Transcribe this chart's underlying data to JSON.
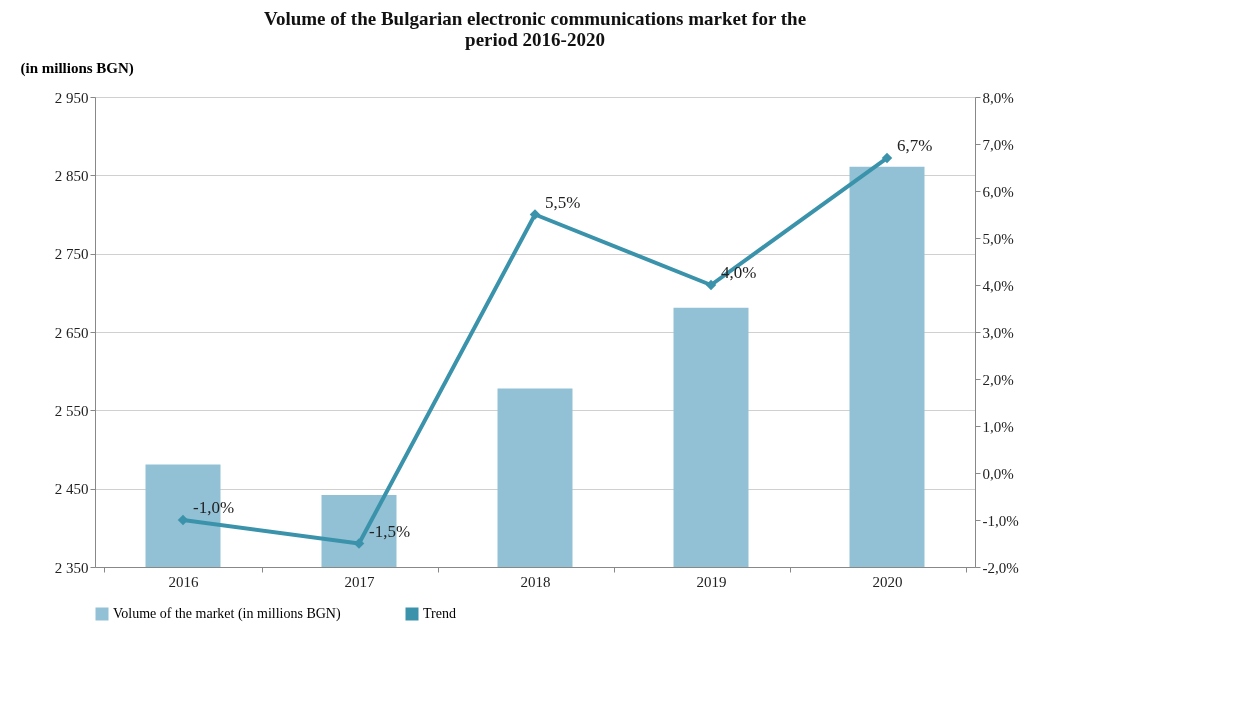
{
  "chart_data": {
    "type": "bar",
    "title": "Volume of the Bulgarian electronic communications market for the period 2016-2020",
    "ylabel": "(in millions BGN)",
    "categories": [
      "2016",
      "2017",
      "2018",
      "2019",
      "2020"
    ],
    "series": [
      {
        "name": "Volume of the market (in millions BGN)",
        "color": "#92c1d5",
        "values": [
          2481,
          2442,
          2578,
          2681,
          2861
        ]
      },
      {
        "name": "Trend",
        "color": "#3a93ab",
        "type": "line",
        "axis": "y2",
        "marker": "diamond",
        "values": [
          -1.0,
          -1.5,
          5.5,
          4.0,
          6.7
        ],
        "value_labels": [
          "-1,0%",
          "-1,5%",
          "5,5%",
          "4,0%",
          "6,7%"
        ]
      }
    ],
    "ylim": [
      2350,
      2950
    ],
    "yticks": [
      {
        "value": 2350,
        "label": "2 350"
      },
      {
        "value": 2450,
        "label": "2 450"
      },
      {
        "value": 2550,
        "label": "2 550"
      },
      {
        "value": 2650,
        "label": "2 650"
      },
      {
        "value": 2750,
        "label": "2 750"
      },
      {
        "value": 2850,
        "label": "2 850"
      },
      {
        "value": 2950,
        "label": "2 950"
      }
    ],
    "y2lim": [
      -2.0,
      8.0
    ],
    "y2ticks": [
      {
        "value": -2,
        "label": "-2,0%"
      },
      {
        "value": -1,
        "label": "-1,0%"
      },
      {
        "value": 0,
        "label": "0,0%"
      },
      {
        "value": 1,
        "label": "1,0%"
      },
      {
        "value": 2,
        "label": "2,0%"
      },
      {
        "value": 3,
        "label": "3,0%"
      },
      {
        "value": 4,
        "label": "4,0%"
      },
      {
        "value": 5,
        "label": "5,0%"
      },
      {
        "value": 6,
        "label": "6,0%"
      },
      {
        "value": 7,
        "label": "7,0%"
      },
      {
        "value": 8,
        "label": "8,0%"
      }
    ],
    "grid": "y",
    "legend": "bottom"
  }
}
